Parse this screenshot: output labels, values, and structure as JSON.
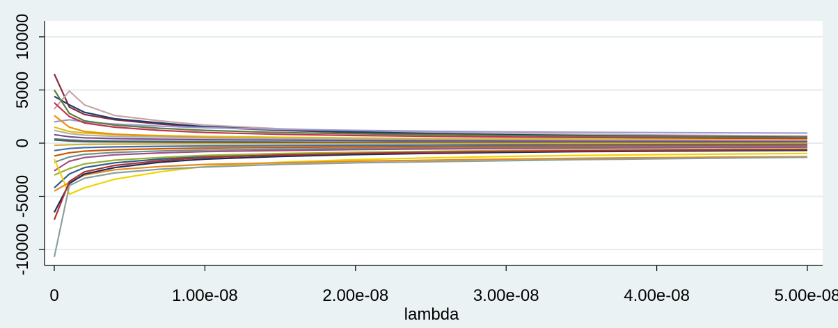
{
  "chart_data": {
    "type": "line",
    "title": "",
    "xlabel": "lambda",
    "ylabel": "",
    "xlim": [
      0,
      5e-08
    ],
    "ylim": [
      -11500,
      11500
    ],
    "x_tick_values": [
      0,
      1e-08,
      2e-08,
      3e-08,
      4e-08,
      5e-08
    ],
    "x_tick_labels": [
      "0",
      "1.00e-08",
      "2.00e-08",
      "3.00e-08",
      "4.00e-08",
      "5.00e-08"
    ],
    "y_tick_values": [
      -10000,
      -5000,
      0,
      5000,
      10000
    ],
    "y_tick_labels": [
      "-10000",
      "-5000",
      "0",
      "5000",
      "10000"
    ],
    "grid": "horizontal",
    "legend": "none",
    "x": [
      0,
      1e-09,
      2e-09,
      4e-09,
      7e-09,
      1e-08,
      1.5e-08,
      2e-08,
      2.5e-08,
      3e-08,
      3.5e-08,
      4e-08,
      4.5e-08,
      5e-08
    ],
    "series": [
      {
        "color": "#8b2a3d",
        "values": [
          6500,
          3400,
          2700,
          2200,
          1800,
          1500,
          1200,
          1000,
          850,
          750,
          680,
          620,
          570,
          530
        ]
      },
      {
        "color": "#c7a6a6",
        "values": [
          3200,
          4900,
          3600,
          2600,
          2100,
          1700,
          1350,
          1150,
          1000,
          900,
          830,
          770,
          720,
          680
        ]
      },
      {
        "color": "#1f3d6b",
        "values": [
          4400,
          3600,
          2900,
          2300,
          1900,
          1550,
          1250,
          1050,
          900,
          800,
          720,
          660,
          610,
          560
        ]
      },
      {
        "color": "#9a9ad0",
        "values": [
          2000,
          2200,
          2000,
          1800,
          1600,
          1450,
          1300,
          1200,
          1120,
          1060,
          1020,
          990,
          970,
          950
        ]
      },
      {
        "color": "#5a7f43",
        "values": [
          5000,
          2800,
          2100,
          1700,
          1400,
          1200,
          1000,
          880,
          790,
          720,
          660,
          610,
          570,
          540
        ]
      },
      {
        "color": "#c23552",
        "values": [
          3800,
          2500,
          1900,
          1500,
          1200,
          1000,
          830,
          720,
          640,
          580,
          530,
          490,
          460,
          430
        ]
      },
      {
        "color": "#e0c000",
        "values": [
          1500,
          1100,
          950,
          820,
          720,
          630,
          550,
          490,
          440,
          400,
          370,
          340,
          320,
          300
        ]
      },
      {
        "color": "#e8900a",
        "values": [
          2600,
          1500,
          1100,
          850,
          650,
          520,
          420,
          350,
          300,
          260,
          230,
          210,
          190,
          170
        ]
      },
      {
        "color": "#b0b0b0",
        "values": [
          1200,
          900,
          750,
          650,
          560,
          480,
          420,
          370,
          330,
          300,
          280,
          260,
          240,
          220
        ]
      },
      {
        "color": "#7a4a8b",
        "values": [
          800,
          600,
          500,
          430,
          370,
          320,
          280,
          250,
          220,
          200,
          185,
          170,
          160,
          150
        ]
      },
      {
        "color": "#4b8a8a",
        "values": [
          400,
          300,
          250,
          200,
          170,
          140,
          120,
          100,
          90,
          80,
          70,
          60,
          55,
          50
        ]
      },
      {
        "color": "#555555",
        "values": [
          300,
          200,
          150,
          120,
          100,
          80,
          60,
          50,
          40,
          35,
          30,
          25,
          20,
          15
        ]
      },
      {
        "color": "#d4af37",
        "values": [
          -200,
          -150,
          -120,
          -100,
          -80,
          -60,
          -50,
          -40,
          -35,
          -30,
          -25,
          -20,
          -18,
          -15
        ]
      },
      {
        "color": "#3c6fb0",
        "values": [
          -700,
          -500,
          -420,
          -350,
          -300,
          -260,
          -230,
          -200,
          -180,
          -160,
          -150,
          -140,
          -130,
          -120
        ]
      },
      {
        "color": "#cc5500",
        "values": [
          -1200,
          -900,
          -750,
          -620,
          -530,
          -460,
          -400,
          -350,
          -320,
          -290,
          -270,
          -250,
          -240,
          -230
        ]
      },
      {
        "color": "#6d8f8f",
        "values": [
          -1800,
          -1300,
          -1050,
          -870,
          -740,
          -640,
          -560,
          -500,
          -450,
          -410,
          -380,
          -360,
          -340,
          -320
        ]
      },
      {
        "color": "#a05080",
        "values": [
          -2600,
          -1700,
          -1350,
          -1100,
          -920,
          -790,
          -690,
          -610,
          -550,
          -500,
          -460,
          -430,
          -400,
          -380
        ]
      },
      {
        "color": "#2b5d8f",
        "values": [
          -4200,
          -2900,
          -2300,
          -1850,
          -1500,
          -1250,
          -1050,
          -920,
          -820,
          -740,
          -680,
          -630,
          -590,
          -560
        ]
      },
      {
        "color": "#98b02b",
        "values": [
          -3000,
          -2400,
          -1950,
          -1600,
          -1350,
          -1150,
          -980,
          -860,
          -770,
          -700,
          -650,
          -610,
          -580,
          -550
        ]
      },
      {
        "color": "#f0d400",
        "values": [
          -1500,
          -4800,
          -4200,
          -3400,
          -2700,
          -2200,
          -1800,
          -1550,
          -1380,
          -1250,
          -1150,
          -1080,
          -1020,
          -970
        ]
      },
      {
        "color": "#e58a1f",
        "values": [
          -4500,
          -3700,
          -3000,
          -2500,
          -2200,
          -2000,
          -1850,
          -1700,
          -1600,
          -1500,
          -1420,
          -1360,
          -1310,
          -1270
        ]
      },
      {
        "color": "#1a2f5a",
        "values": [
          -6500,
          -3800,
          -2900,
          -2300,
          -1800,
          -1500,
          -1250,
          -1080,
          -960,
          -870,
          -800,
          -750,
          -710,
          -680
        ]
      },
      {
        "color": "#b03030",
        "values": [
          -7200,
          -3600,
          -2700,
          -2100,
          -1650,
          -1350,
          -1120,
          -970,
          -860,
          -780,
          -720,
          -670,
          -630,
          -600
        ]
      },
      {
        "color": "#8aa0a0",
        "values": [
          -10700,
          -4000,
          -3300,
          -2800,
          -2450,
          -2250,
          -2000,
          -1850,
          -1750,
          -1650,
          -1550,
          -1470,
          -1400,
          -1330
        ]
      }
    ]
  }
}
